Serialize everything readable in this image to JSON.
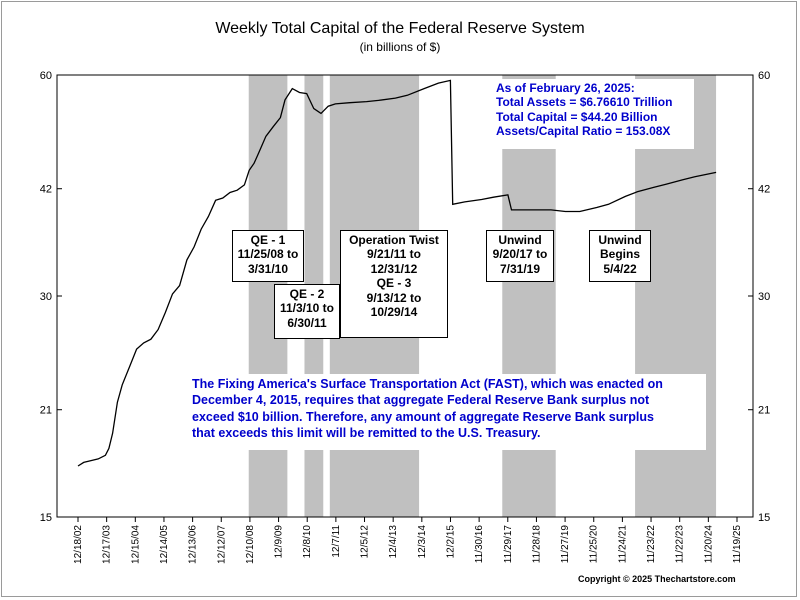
{
  "chart_data": {
    "type": "line",
    "title": "Weekly Total Capital of the Federal Reserve System",
    "subtitle": "(in billions of $)",
    "ylabel": "",
    "xlabel": "",
    "y_ticks": [
      15,
      21,
      30,
      42,
      60
    ],
    "y_scale": "log",
    "ylim": [
      15,
      60
    ],
    "x_ticks": [
      "12/18/02",
      "12/17/03",
      "12/15/04",
      "12/14/05",
      "12/13/06",
      "12/12/07",
      "12/10/08",
      "12/9/09",
      "12/8/10",
      "12/7/11",
      "12/5/12",
      "12/4/13",
      "12/3/14",
      "12/2/15",
      "11/30/16",
      "11/29/17",
      "11/28/18",
      "11/27/19",
      "11/25/20",
      "11/24/21",
      "11/23/22",
      "11/22/23",
      "11/20/24",
      "11/19/25"
    ],
    "shaded_periods": [
      {
        "start": "11/25/08",
        "end": "3/31/10"
      },
      {
        "start": "11/3/10",
        "end": "6/30/11"
      },
      {
        "start": "9/21/11",
        "end": "10/29/14"
      },
      {
        "start": "9/20/17",
        "end": "7/31/19"
      },
      {
        "start": "5/4/22",
        "end": "2/26/25"
      }
    ],
    "series": [
      {
        "color": "#000000",
        "points": [
          [
            "2002-12-18",
            17.6
          ],
          [
            "2003-03-01",
            17.8
          ],
          [
            "2003-06-01",
            17.9
          ],
          [
            "2003-09-01",
            18.0
          ],
          [
            "2003-12-01",
            18.2
          ],
          [
            "2004-01-15",
            18.6
          ],
          [
            "2004-03-01",
            19.5
          ],
          [
            "2004-05-01",
            21.5
          ],
          [
            "2004-07-01",
            22.7
          ],
          [
            "2004-10-01",
            24.0
          ],
          [
            "2005-01-01",
            25.4
          ],
          [
            "2005-04-01",
            25.9
          ],
          [
            "2005-07-01",
            26.2
          ],
          [
            "2005-10-01",
            27.0
          ],
          [
            "2006-01-01",
            28.5
          ],
          [
            "2006-04-01",
            30.2
          ],
          [
            "2006-07-01",
            31.0
          ],
          [
            "2006-10-01",
            33.6
          ],
          [
            "2007-01-01",
            35.0
          ],
          [
            "2007-04-01",
            37.0
          ],
          [
            "2007-07-01",
            38.5
          ],
          [
            "2007-10-01",
            40.5
          ],
          [
            "2008-01-01",
            40.8
          ],
          [
            "2008-04-01",
            41.5
          ],
          [
            "2008-07-01",
            41.8
          ],
          [
            "2008-10-01",
            42.5
          ],
          [
            "2008-12-01",
            44.5
          ],
          [
            "2009-02-01",
            45.5
          ],
          [
            "2009-04-01",
            47.0
          ],
          [
            "2009-07-01",
            49.5
          ],
          [
            "2009-10-01",
            51.0
          ],
          [
            "2010-01-01",
            52.5
          ],
          [
            "2010-03-01",
            55.5
          ],
          [
            "2010-06-01",
            57.5
          ],
          [
            "2010-09-01",
            56.8
          ],
          [
            "2010-12-01",
            56.6
          ],
          [
            "2011-03-01",
            54.0
          ],
          [
            "2011-06-01",
            53.2
          ],
          [
            "2011-09-01",
            54.4
          ],
          [
            "2011-12-01",
            54.8
          ],
          [
            "2012-06-01",
            55.0
          ],
          [
            "2013-01-01",
            55.2
          ],
          [
            "2013-06-01",
            55.4
          ],
          [
            "2014-01-01",
            55.8
          ],
          [
            "2014-06-01",
            56.3
          ],
          [
            "2015-01-01",
            57.5
          ],
          [
            "2015-07-01",
            58.5
          ],
          [
            "2015-12-01",
            59.0
          ],
          [
            "2015-12-30",
            40.0
          ],
          [
            "2016-06-01",
            40.3
          ],
          [
            "2017-01-01",
            40.6
          ],
          [
            "2017-06-01",
            40.9
          ],
          [
            "2017-12-01",
            41.2
          ],
          [
            "2018-01-15",
            39.3
          ],
          [
            "2018-06-01",
            39.3
          ],
          [
            "2019-01-01",
            39.3
          ],
          [
            "2019-06-01",
            39.3
          ],
          [
            "2019-12-01",
            39.1
          ],
          [
            "2020-06-01",
            39.1
          ],
          [
            "2021-01-01",
            39.6
          ],
          [
            "2021-06-01",
            40.0
          ],
          [
            "2022-01-01",
            41.0
          ],
          [
            "2022-06-01",
            41.6
          ],
          [
            "2023-01-01",
            42.2
          ],
          [
            "2023-06-01",
            42.6
          ],
          [
            "2024-01-01",
            43.2
          ],
          [
            "2024-06-01",
            43.6
          ],
          [
            "2025-02-26",
            44.2
          ]
        ]
      }
    ]
  },
  "annotations": {
    "as_of": {
      "line1": "As of February 26, 2025:",
      "line2": "Total Assets = $6.76610 Trillion",
      "line3": "Total Capital  = $44.20 Billion",
      "line4": "Assets/Capital Ratio = 153.08X",
      "color": "#0000cc"
    },
    "qe1": {
      "line1": "QE - 1",
      "line2": "11/25/08 to",
      "line3": "3/31/10"
    },
    "qe2": {
      "line1": "QE - 2",
      "line2": "11/3/10 to",
      "line3": "6/30/11"
    },
    "twist": {
      "line1": "Operation Twist",
      "line2": "9/21/11 to",
      "line3": "12/31/12",
      "line4": "QE - 3",
      "line5": "9/13/12 to",
      "line6": "10/29/14"
    },
    "unwind1": {
      "line1": "Unwind",
      "line2": "9/20/17 to",
      "line3": "7/31/19"
    },
    "unwind2": {
      "line1": "Unwind",
      "line2": "Begins",
      "line3": "5/4/22"
    },
    "fast_act": {
      "line1": "The Fixing America's Surface Transportation Act (FAST), which was enacted on",
      "line2": "December 4, 2015, requires that aggregate Federal Reserve Bank surplus not",
      "line3": "exceed $10 billion.  Therefore, any amount of aggregate Reserve Bank surplus",
      "line4": "that exceeds this limit will be remitted to the U.S. Treasury.",
      "color": "#0000cc"
    }
  },
  "copyright": "Copyright © 2025 Thechartstore.com",
  "colors": {
    "shade": "#c0c0c0",
    "line": "#000000",
    "accent_blue": "#0000cc"
  }
}
